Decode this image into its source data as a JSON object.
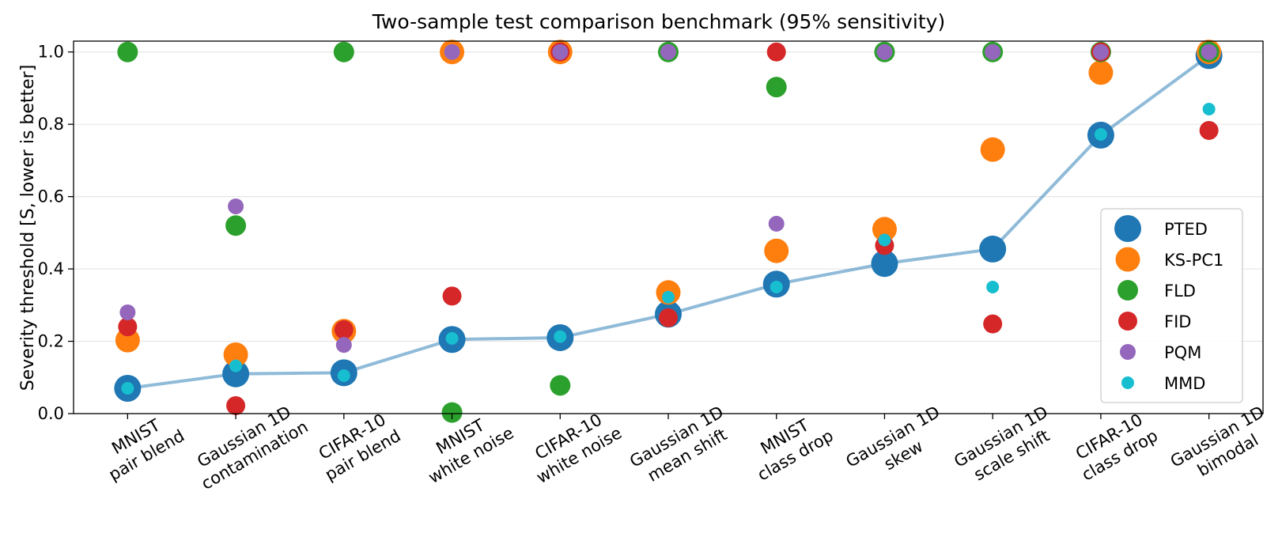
{
  "chart_data": {
    "type": "scatter",
    "title": "Two-sample test comparison benchmark (95% sensitivity)",
    "xlabel": "",
    "ylabel": "Severity threshold [S, lower is better]",
    "ylim": [
      0,
      1.03
    ],
    "yticks": [
      "0.0",
      "0.2",
      "0.4",
      "0.6",
      "0.8",
      "1.0"
    ],
    "grid": "horizontal",
    "legend_position": "right",
    "categories": [
      [
        "MNIST",
        "pair blend"
      ],
      [
        "Gaussian 1D",
        "contamination"
      ],
      [
        "CIFAR-10",
        "pair blend"
      ],
      [
        "MNIST",
        "white noise"
      ],
      [
        "CIFAR-10",
        "white noise"
      ],
      [
        "Gaussian 1D",
        "mean shift"
      ],
      [
        "MNIST",
        "class drop"
      ],
      [
        "Gaussian 1D",
        "skew"
      ],
      [
        "Gaussian 1D",
        "scale shift"
      ],
      [
        "CIFAR-10",
        "class drop"
      ],
      [
        "Gaussian 1D",
        "bimodal"
      ]
    ],
    "series": [
      {
        "name": "PTED",
        "color": "#1f77b4",
        "connected": true,
        "values": [
          0.07,
          0.11,
          0.113,
          0.205,
          0.21,
          0.275,
          0.358,
          0.415,
          0.455,
          0.77,
          0.99
        ]
      },
      {
        "name": "KS-PC1",
        "color": "#ff7f0e",
        "connected": false,
        "values": [
          0.203,
          0.163,
          0.228,
          1.0,
          1.0,
          0.335,
          0.45,
          0.51,
          0.73,
          0.943,
          1.0
        ]
      },
      {
        "name": "FLD",
        "color": "#2ca02c",
        "connected": false,
        "values": [
          1.0,
          0.52,
          1.0,
          0.003,
          0.078,
          1.0,
          0.903,
          1.0,
          1.0,
          1.0,
          1.0
        ]
      },
      {
        "name": "FID",
        "color": "#d62728",
        "connected": false,
        "values": [
          0.24,
          0.022,
          0.232,
          0.325,
          1.0,
          0.265,
          1.0,
          0.465,
          0.248,
          1.0,
          0.783
        ]
      },
      {
        "name": "PQM",
        "color": "#9467bd",
        "connected": false,
        "values": [
          0.28,
          0.573,
          0.19,
          1.0,
          1.0,
          1.0,
          0.525,
          1.0,
          1.0,
          1.0,
          1.0
        ]
      },
      {
        "name": "MMD",
        "color": "#17becf",
        "connected": false,
        "values": [
          0.07,
          0.132,
          0.105,
          0.208,
          0.213,
          0.322,
          0.35,
          0.48,
          0.35,
          0.772,
          0.842
        ]
      }
    ]
  }
}
